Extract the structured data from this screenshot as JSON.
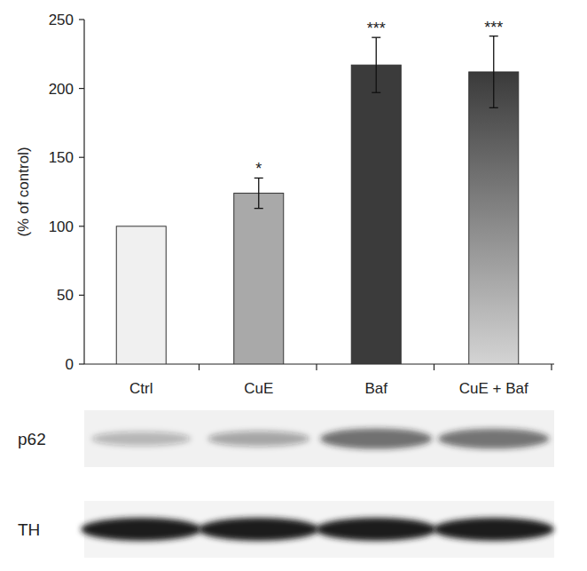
{
  "chart_data": {
    "type": "bar",
    "y_label": "(% of control)",
    "categories": [
      "Ctrl",
      "CuE",
      "Baf",
      "CuE + Baf"
    ],
    "values": [
      100,
      124,
      217,
      212
    ],
    "errors": [
      null,
      11,
      20,
      26
    ],
    "annotations": [
      null,
      "*",
      "***",
      "***"
    ],
    "colors": [
      "#f0f0f0",
      "#a9a9a9",
      "#3b3b3b",
      "#3a3a3a"
    ],
    "ylim": [
      0,
      250
    ],
    "yticks": [
      0,
      50,
      100,
      150,
      200,
      250
    ],
    "grid": false
  },
  "blot": {
    "rows": [
      {
        "label": "p62"
      },
      {
        "label": "TH"
      }
    ]
  }
}
